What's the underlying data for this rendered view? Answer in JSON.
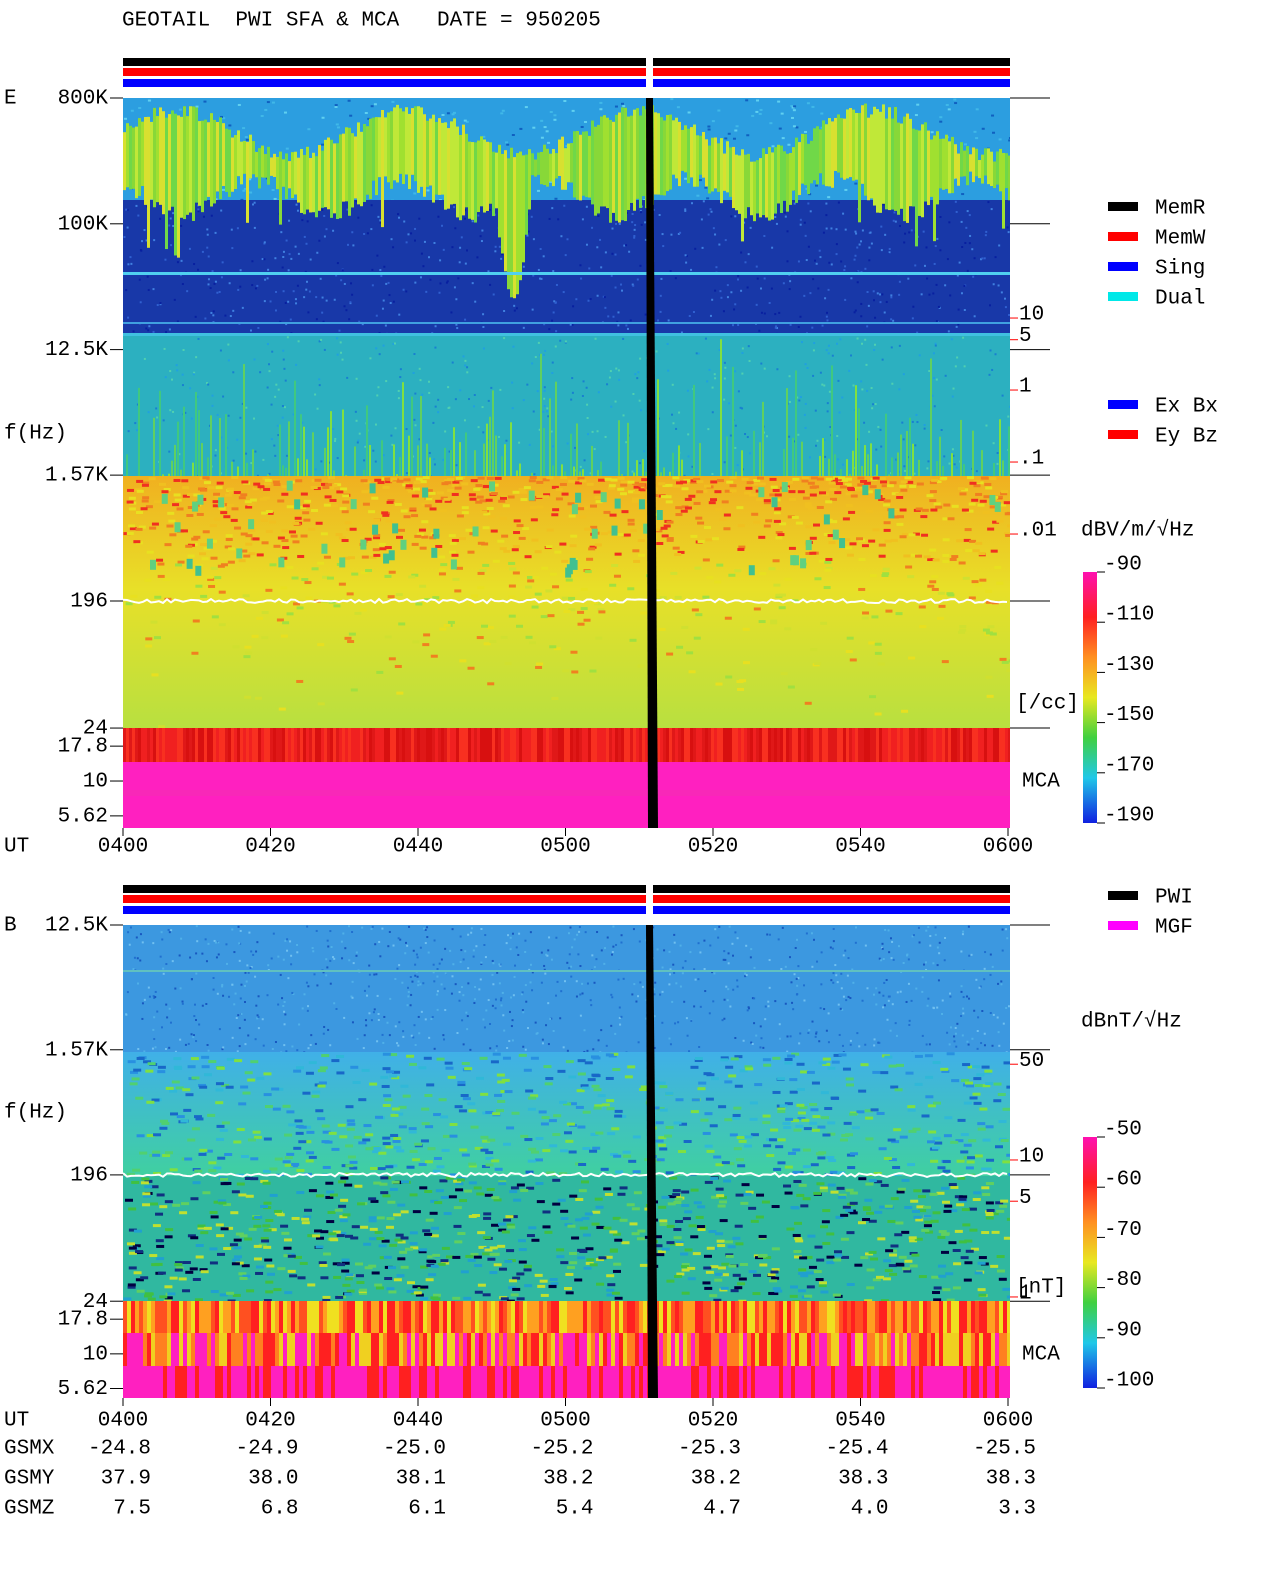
{
  "title": "GEOTAIL  PWI SFA & MCA   DATE = 950205",
  "chart_data": [
    {
      "type": "spectrogram",
      "panel_label": "E",
      "ylabel": "f(Hz)",
      "xlabel": "UT",
      "mca_label": "MCA",
      "ylog": true,
      "ylim": [
        4.6,
        800000
      ],
      "yticks": [
        {
          "value": 800000,
          "label": "800K"
        },
        {
          "value": 100000,
          "label": "100K"
        },
        {
          "value": 12500,
          "label": "12.5K"
        },
        {
          "value": 1570,
          "label": "1.57K"
        },
        196,
        24,
        17.8,
        10,
        5.62
      ],
      "xlim": [
        "0400",
        "0600"
      ],
      "xticks": [
        "0400",
        "0420",
        "0440",
        "0500",
        "0520",
        "0540",
        "0600"
      ],
      "colorbar": {
        "label": "dBV/m/√Hz",
        "lim": [
          -190,
          -90
        ],
        "ticks": [
          -90,
          -110,
          -130,
          -150,
          -170,
          -190
        ]
      },
      "density_axis": {
        "label": "[/cc]",
        "color": "#ff0000",
        "log": true,
        "lim": [
          8.26e-07,
          11376
        ],
        "ticks": [
          10,
          5,
          1,
          {
            "value": 0.1,
            "label": ".1"
          },
          {
            "value": 0.01,
            "label": ".01"
          }
        ]
      },
      "legend": [
        {
          "name": "MemR",
          "color": "#000000"
        },
        {
          "name": "MemW",
          "color": "#ff0000"
        },
        {
          "name": "Sing",
          "color": "#0000ff"
        },
        {
          "name": "Dual",
          "color": "#00e8e8"
        }
      ],
      "component_legend": [
        {
          "name": "Ex Bx",
          "color": "#0000ff"
        },
        {
          "name": "Ey Bz",
          "color": "#ff0000"
        }
      ]
    },
    {
      "type": "spectrogram",
      "panel_label": "B",
      "ylabel": "f(Hz)",
      "xlabel": "UT",
      "mca_label": "MCA",
      "ylog": true,
      "ylim": [
        4.8,
        12500
      ],
      "yticks": [
        {
          "value": 12500,
          "label": "12.5K"
        },
        {
          "value": 1570,
          "label": "1.57K"
        },
        196,
        24,
        17.8,
        10,
        5.62
      ],
      "xlim": [
        "0400",
        "0600"
      ],
      "xticks": [
        "0400",
        "0420",
        "0440",
        "0500",
        "0520",
        "0540",
        "0600"
      ],
      "colorbar": {
        "label": "dBnT/√Hz",
        "lim": [
          -100,
          -50
        ],
        "ticks": [
          -50,
          -60,
          -70,
          -80,
          -90,
          -100
        ]
      },
      "density_axis": {
        "label": "[nT]",
        "color": "#ff0000",
        "log": true,
        "lim": [
          0.183,
          519
        ],
        "ticks": [
          50,
          10,
          5,
          1
        ]
      },
      "legend": [
        {
          "name": "PWI",
          "color": "#000000"
        },
        {
          "name": "MGF",
          "color": "#ff00ff"
        }
      ]
    }
  ],
  "orbit": {
    "rows": [
      {
        "label": "GSMX",
        "values": [
          "-24.8",
          "-24.9",
          "-25.0",
          "-25.2",
          "-25.3",
          "-25.4",
          "-25.5"
        ]
      },
      {
        "label": "GSMY",
        "values": [
          "37.9",
          "38.0",
          "38.1",
          "38.2",
          "38.2",
          "38.3",
          "38.3"
        ]
      },
      {
        "label": "GSMZ",
        "values": [
          "7.5",
          "6.8",
          "6.1",
          "5.4",
          "4.7",
          "4.0",
          "3.3"
        ]
      }
    ]
  }
}
